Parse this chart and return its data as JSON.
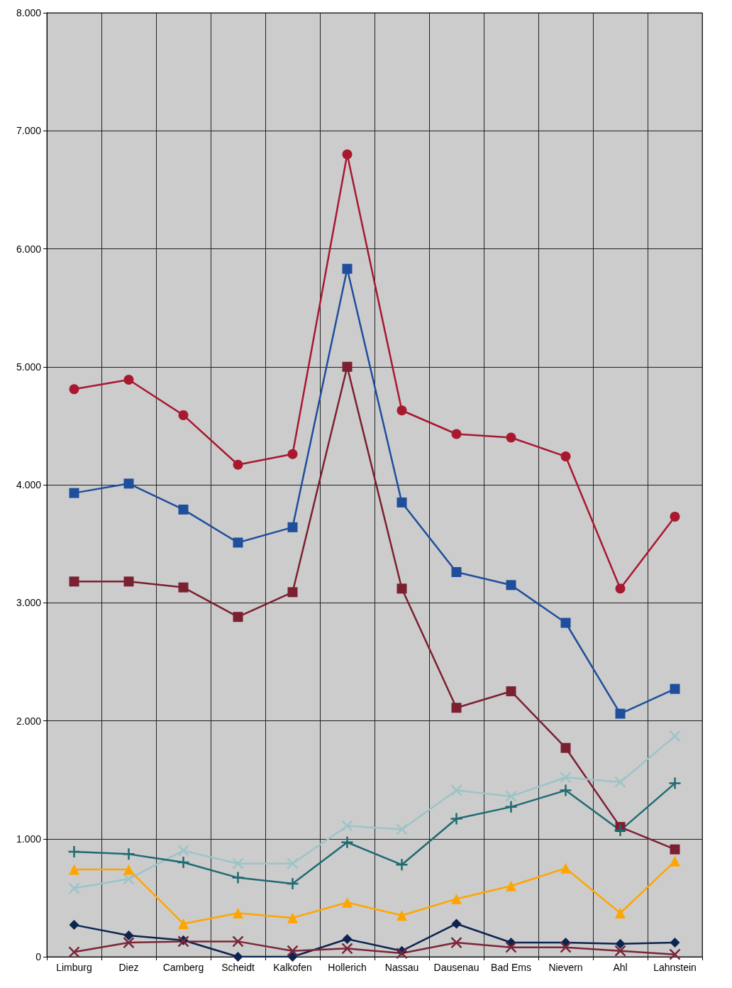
{
  "chart_data": {
    "type": "line",
    "categories": [
      "Limburg",
      "Diez",
      "Camberg",
      "Scheidt",
      "Kalkofen",
      "Hollerich",
      "Nassau",
      "Dausenau",
      "Bad Ems",
      "Nievern",
      "Ahl",
      "Lahnstein"
    ],
    "ylim": [
      0,
      8000
    ],
    "yticks": [
      0,
      {
        "value": 1000,
        "label": "1.000"
      },
      {
        "value": 2000,
        "label": "2.000"
      },
      {
        "value": 3000,
        "label": "3.000"
      },
      {
        "value": 4000,
        "label": "4.000"
      },
      {
        "value": 5000,
        "label": "5.000"
      },
      {
        "value": 6000,
        "label": "6.000"
      },
      {
        "value": 7000,
        "label": "7.000"
      },
      {
        "value": 8000,
        "label": "8.000"
      }
    ],
    "grid": true,
    "line_style": "solid",
    "series": [
      {
        "color": "#a8182f",
        "marker": "circle",
        "values": [
          4810,
          4890,
          4590,
          4170,
          4260,
          6800,
          4630,
          4430,
          4400,
          4240,
          3120,
          3730
        ]
      },
      {
        "color": "#1f4e9c",
        "marker": "square",
        "values": [
          3930,
          4010,
          3790,
          3510,
          3640,
          5830,
          3850,
          3260,
          3150,
          2830,
          2060,
          2270
        ]
      },
      {
        "color": "#7b2030",
        "marker": "square",
        "values": [
          3180,
          3180,
          3130,
          2880,
          3090,
          5000,
          3120,
          2110,
          2250,
          1770,
          1100,
          910
        ]
      },
      {
        "color": "#9cc4c8",
        "marker": "cross",
        "values": [
          580,
          660,
          900,
          790,
          790,
          1110,
          1080,
          1410,
          1360,
          1520,
          1480,
          1870
        ]
      },
      {
        "color": "#1f6b72",
        "marker": "plus",
        "values": [
          890,
          870,
          800,
          670,
          620,
          970,
          780,
          1170,
          1270,
          1410,
          1070,
          1470
        ]
      },
      {
        "color": "#ffa500",
        "marker": "triangle",
        "values": [
          740,
          740,
          280,
          370,
          330,
          460,
          350,
          490,
          600,
          750,
          370,
          810
        ]
      },
      {
        "color": "#0c2450",
        "marker": "diamond",
        "values": [
          270,
          180,
          140,
          0,
          0,
          150,
          50,
          280,
          120,
          120,
          110,
          120
        ]
      },
      {
        "color": "#7b2638",
        "marker": "cross",
        "values": [
          40,
          120,
          130,
          130,
          50,
          70,
          30,
          120,
          80,
          80,
          50,
          20
        ]
      }
    ]
  }
}
